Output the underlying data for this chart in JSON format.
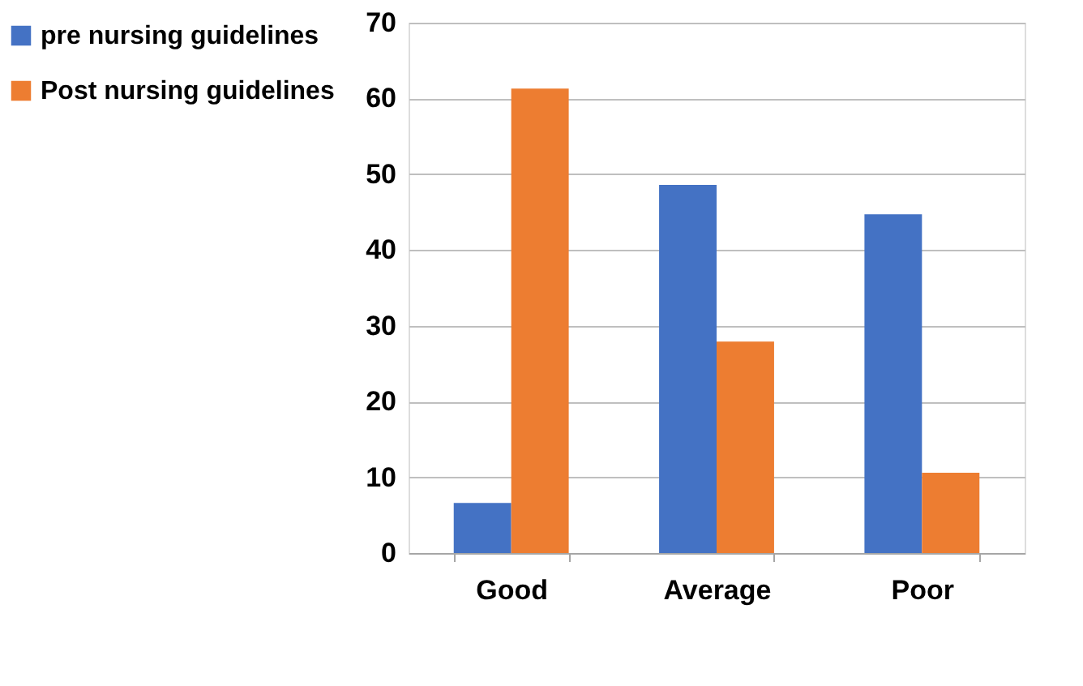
{
  "chart_data": {
    "type": "bar",
    "categories": [
      "Good",
      "Average",
      "Poor"
    ],
    "series": [
      {
        "name": "pre nursing guidelines",
        "color": "#4472c4",
        "values": [
          6.6,
          48.6,
          44.7
        ]
      },
      {
        "name": "Post nursing guidelines",
        "color": "#ed7d31",
        "values": [
          61.3,
          27.9,
          10.6
        ]
      }
    ],
    "ylim": [
      0,
      70
    ],
    "yticks": [
      0,
      10,
      20,
      30,
      40,
      50,
      60,
      70
    ],
    "grid": "y",
    "legend": "left"
  }
}
